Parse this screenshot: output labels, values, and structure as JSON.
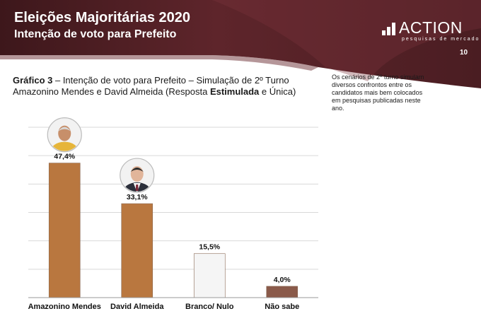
{
  "header": {
    "title": "Eleições Majoritárias 2020",
    "subtitle": "Intenção de voto para Prefeito",
    "page_number": "10",
    "brand": {
      "name": "ACTION",
      "tagline": "pesquisas de mercado"
    }
  },
  "caption": {
    "label": "Gráfico 3",
    "text_1": " – Intenção de voto para Prefeito – Simulação de 2º Turno Amazonino Mendes e David Almeida (Resposta ",
    "bold_word": "Estimulada",
    "text_2": " e Única)"
  },
  "note": "Os cenários de 2º turno simulam diversos confrontos entre os candidatos mais bem colocados em pesquisas publicadas neste ano.",
  "colors": {
    "header_dark": "#4a1d22",
    "header_mid": "#6b2d33",
    "bar_candidate": "#b9773f",
    "bar_null": "#f5f5f5",
    "bar_unknown": "#8a5a4a"
  },
  "chart_data": {
    "type": "bar",
    "title": "",
    "xlabel": "",
    "ylabel": "",
    "categories": [
      "Amazonino Mendes",
      "David Almeida",
      "Branco/ Nulo",
      "Não sabe"
    ],
    "values": [
      47.4,
      33.1,
      15.5,
      4.0
    ],
    "value_labels": [
      "47,4%",
      "33,1%",
      "15,5%",
      "4,0%"
    ],
    "ylim": [
      0,
      60
    ],
    "grid": true,
    "legend": "none",
    "bar_colors": [
      "#b9773f",
      "#b9773f",
      "#f5f5f5",
      "#8a5a4a"
    ],
    "photo_icons": [
      "candidate-amazonino-photo-icon",
      "candidate-david-photo-icon",
      "",
      ""
    ]
  }
}
